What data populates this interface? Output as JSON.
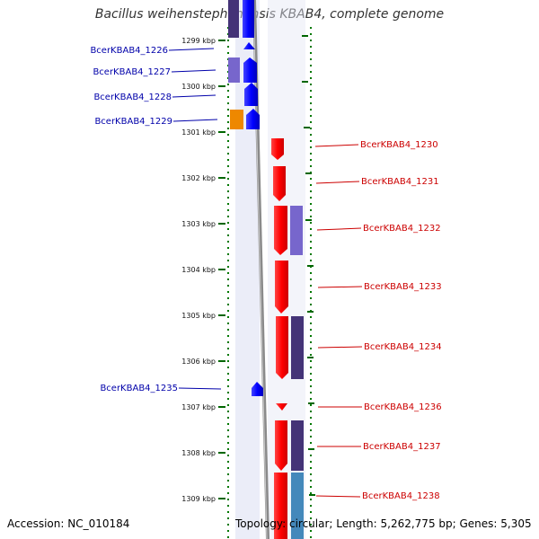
{
  "title": "Bacillus weihenstephanensis KBAB4, complete genome",
  "accession": "Accession: NC_010184",
  "topology": "Topology: circular; Length: 5,262,775 bp; Genes: 5,305",
  "colors": {
    "forward": "#0000ee",
    "reverse": "#ee0000",
    "left_label": "#0000aa",
    "right_label": "#cc0000",
    "ruler_dots": "#007700",
    "cog_light": "#7766cc",
    "cog_dark": "#443377",
    "cog_orange": "#ee8800",
    "cog_blue": "#4488bb"
  },
  "kbp_ticks": [
    "1299 kbp",
    "1300 kbp",
    "1301 kbp",
    "1302 kbp",
    "1303 kbp",
    "1304 kbp",
    "1305 kbp",
    "1306 kbp",
    "1307 kbp",
    "1308 kbp",
    "1309 kbp"
  ],
  "left_genes": [
    "BcerKBAB4_1226",
    "BcerKBAB4_1227",
    "BcerKBAB4_1228",
    "BcerKBAB4_1229",
    "BcerKBAB4_1235"
  ],
  "right_genes": [
    "BcerKBAB4_1230",
    "BcerKBAB4_1231",
    "BcerKBAB4_1232",
    "BcerKBAB4_1233",
    "BcerKBAB4_1234",
    "BcerKBAB4_1236",
    "BcerKBAB4_1237",
    "BcerKBAB4_1238"
  ]
}
